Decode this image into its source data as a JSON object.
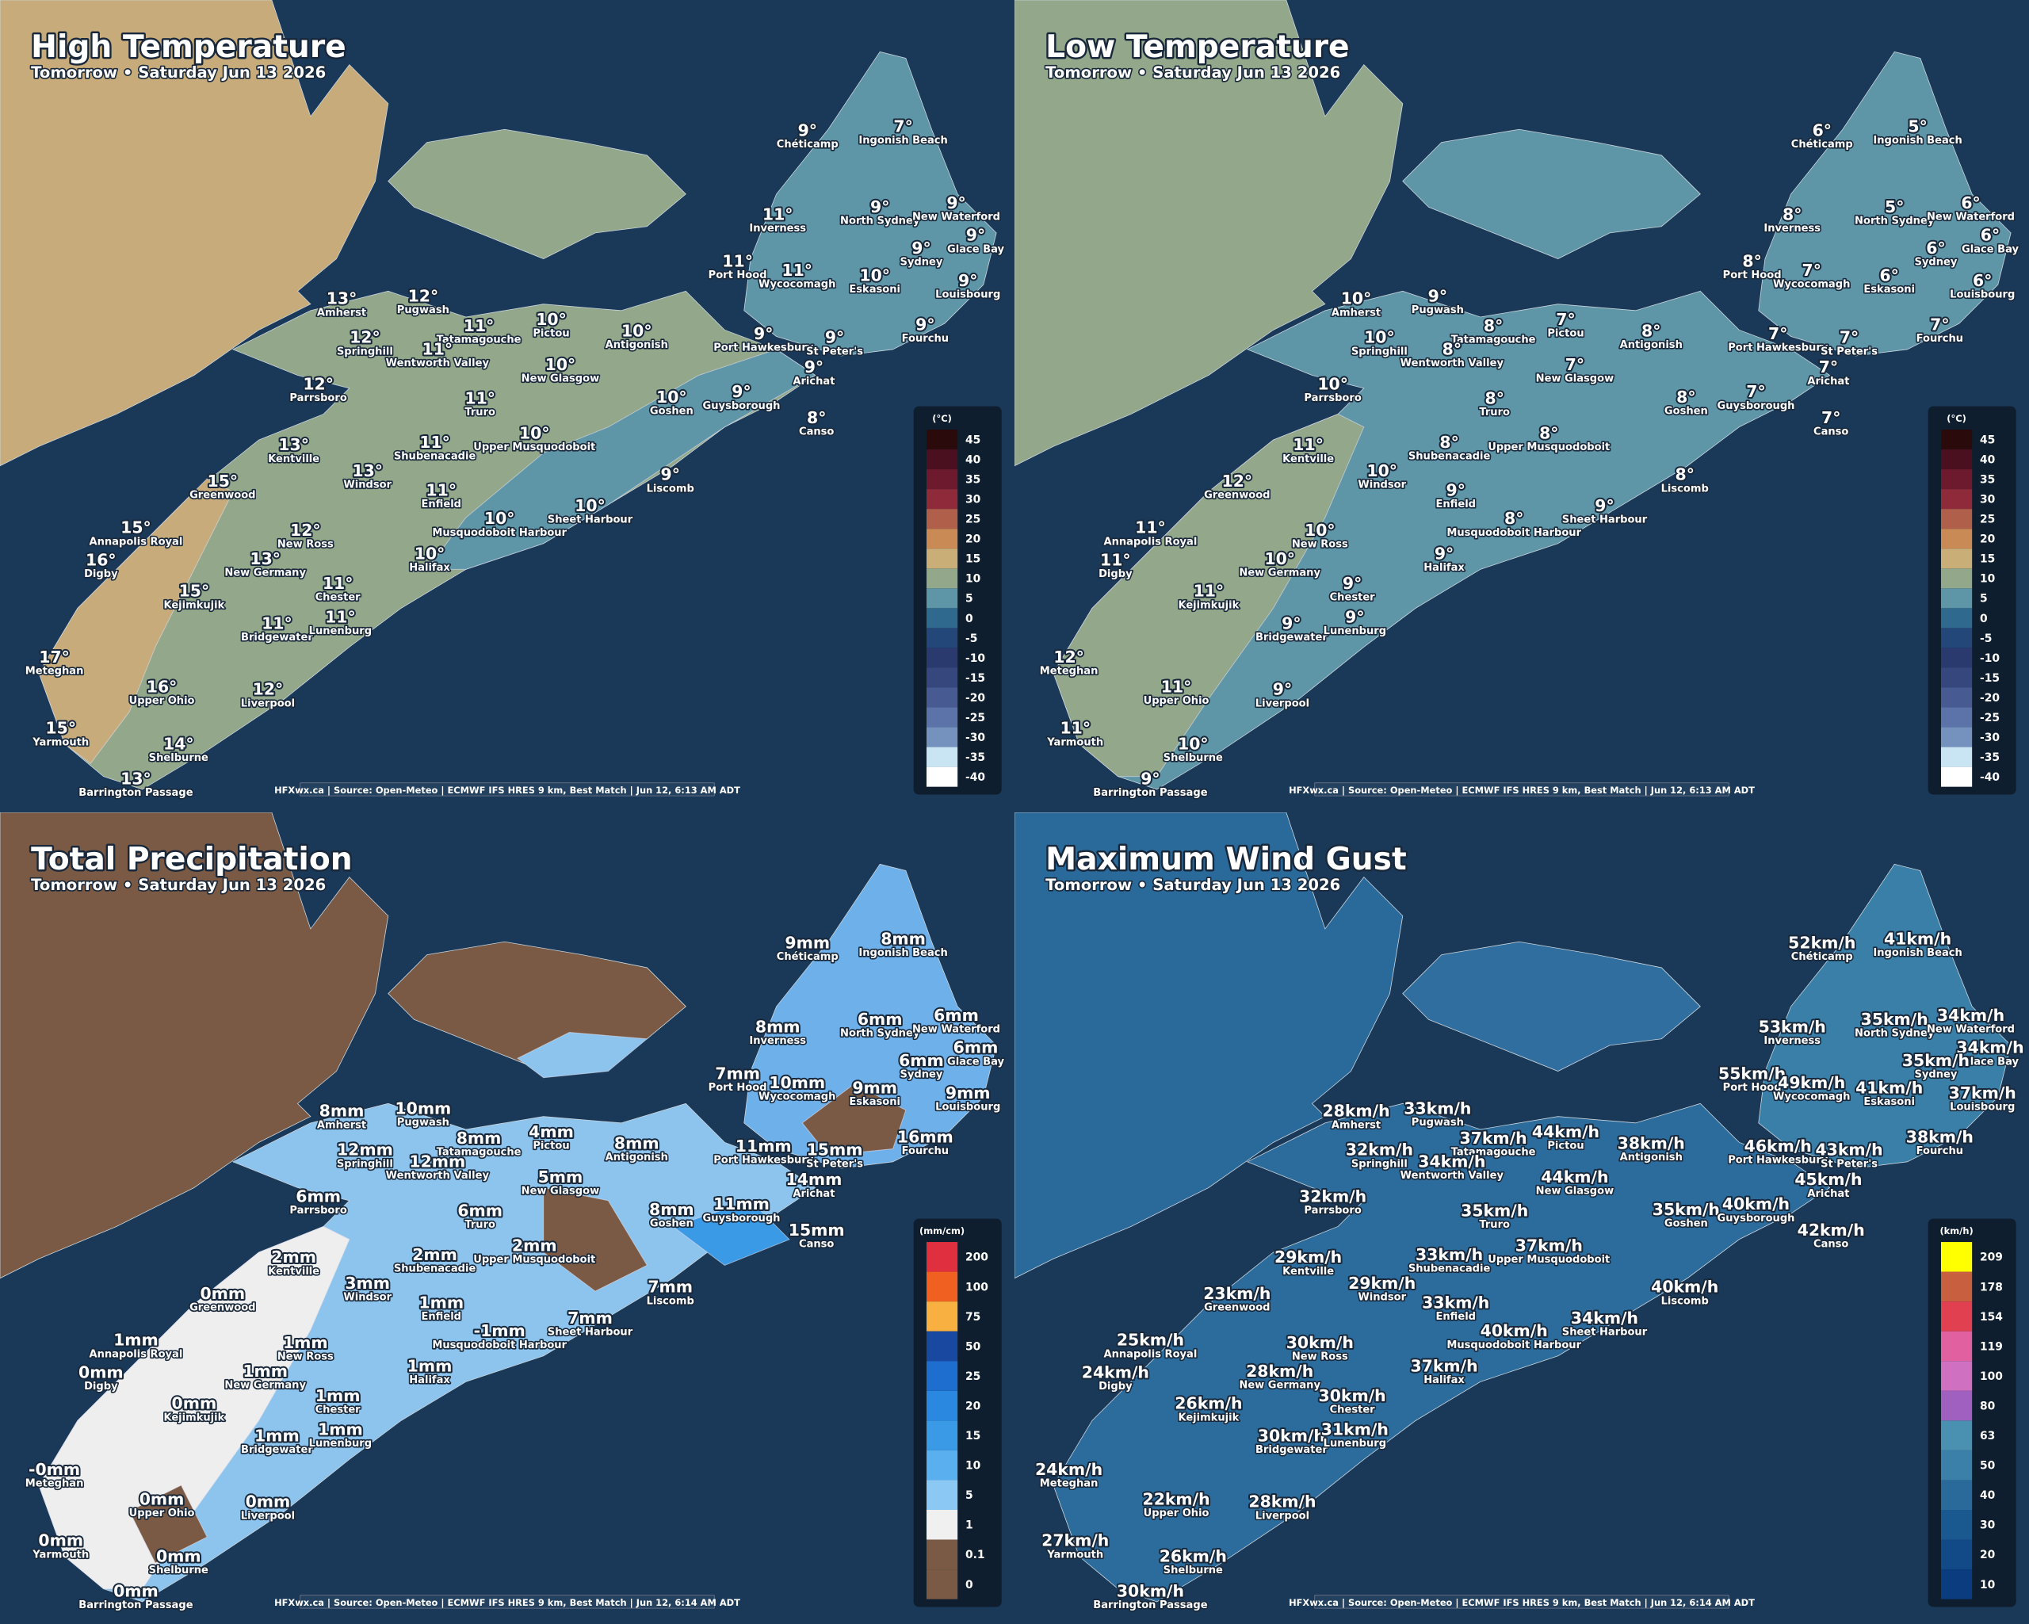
{
  "cities": [
    "Chéticamp",
    "Ingonish Beach",
    "Inverness",
    "North Sydney",
    "New Waterford",
    "Glace Bay",
    "Sydney",
    "Port Hood",
    "Wycocomagh",
    "Eskasoni",
    "Louisbourg",
    "Amherst",
    "Pugwash",
    "Tatamagouche",
    "Pictou",
    "Antigonish",
    "Port Hawkesbury",
    "St Peter's",
    "Springhill",
    "Wentworth Valley",
    "New Glasgow",
    "Arichat",
    "Fourchu",
    "Parrsboro",
    "Truro",
    "Goshen",
    "Guysborough",
    "Canso",
    "Kentville",
    "Shubenacadie",
    "Upper Musquodoboit",
    "Windsor",
    "Greenwood",
    "Enfield",
    "Liscomb",
    "Sheet Harbour",
    "Musquodoboit Harbour",
    "Annapolis Royal",
    "New Ross",
    "Digby",
    "New Germany",
    "Halifax",
    "Chester",
    "Kejimkujik",
    "Bridgewater",
    "Lunenburg",
    "Meteghan",
    "Upper Ohio",
    "Liverpool",
    "Yarmouth",
    "Shelburne",
    "Barrington Passage"
  ],
  "panels": [
    {
      "title": "High Temperature",
      "subtitle": "Tomorrow • Saturday Jun 13 2026",
      "source": "HFXwx.ca | Source: Open-Meteo | ECMWF IFS HRES 9 km, Best Match | Jun 12, 6:13 AM ADT",
      "legend": {
        "unit": "(°C)",
        "labels": [
          45,
          40,
          35,
          30,
          25,
          20,
          15,
          10,
          5,
          0,
          -5,
          -10,
          -15,
          -20,
          -25,
          -30,
          -35,
          -40
        ],
        "colors": [
          "#2a0a0a",
          "#4a1020",
          "#6e1a2e",
          "#8e2a3a",
          "#b0604a",
          "#c98a55",
          "#c9ae78",
          "#93a78a",
          "#5e96a8",
          "#2f6a8e",
          "#24477a",
          "#2a3a6e",
          "#36477e",
          "#485a92",
          "#5b73a8",
          "#7592bf",
          "#c9e4f2",
          "#ffffff"
        ]
      },
      "values": [
        "9°",
        "7°",
        "11°",
        "9°",
        "9°",
        "9°",
        "9°",
        "11°",
        "11°",
        "10°",
        "9°",
        "13°",
        "12°",
        "11°",
        "10°",
        "10°",
        "9°",
        "9°",
        "12°",
        "11°",
        "10°",
        "9°",
        "9°",
        "12°",
        "11°",
        "10°",
        "9°",
        "8°",
        "13°",
        "11°",
        "10°",
        "13°",
        "15°",
        "11°",
        "9°",
        "10°",
        "10°",
        "15°",
        "12°",
        "16°",
        "13°",
        "10°",
        "11°",
        "15°",
        "11°",
        "11°",
        "17°",
        "16°",
        "12°",
        "15°",
        "14°",
        "13°"
      ]
    },
    {
      "title": "Low Temperature",
      "subtitle": "Tomorrow • Saturday Jun 13 2026",
      "source": "HFXwx.ca | Source: Open-Meteo | ECMWF IFS HRES 9 km, Best Match | Jun 12, 6:13 AM ADT",
      "legend": {
        "unit": "(°C)",
        "labels": [
          45,
          40,
          35,
          30,
          25,
          20,
          15,
          10,
          5,
          0,
          -5,
          -10,
          -15,
          -20,
          -25,
          -30,
          -35,
          -40
        ],
        "colors": [
          "#2a0a0a",
          "#4a1020",
          "#6e1a2e",
          "#8e2a3a",
          "#b0604a",
          "#c98a55",
          "#c9ae78",
          "#93a78a",
          "#5e96a8",
          "#2f6a8e",
          "#24477a",
          "#2a3a6e",
          "#36477e",
          "#485a92",
          "#5b73a8",
          "#7592bf",
          "#c9e4f2",
          "#ffffff"
        ]
      },
      "values": [
        "6°",
        "5°",
        "8°",
        "5°",
        "6°",
        "6°",
        "6°",
        "8°",
        "7°",
        "6°",
        "6°",
        "10°",
        "9°",
        "8°",
        "7°",
        "8°",
        "7°",
        "7°",
        "10°",
        "8°",
        "7°",
        "7°",
        "7°",
        "10°",
        "8°",
        "8°",
        "7°",
        "7°",
        "11°",
        "8°",
        "8°",
        "10°",
        "12°",
        "9°",
        "8°",
        "9°",
        "8°",
        "11°",
        "10°",
        "11°",
        "10°",
        "9°",
        "9°",
        "11°",
        "9°",
        "9°",
        "12°",
        "11°",
        "9°",
        "11°",
        "10°",
        "9°"
      ]
    },
    {
      "title": "Total Precipitation",
      "subtitle": "Tomorrow • Saturday Jun 13 2026",
      "source": "HFXwx.ca | Source: Open-Meteo | ECMWF IFS HRES 9 km, Best Match | Jun 12, 6:14 AM ADT",
      "legend": {
        "unit": "(mm/cm)",
        "labels": [
          200,
          100,
          75,
          50,
          25,
          20,
          15,
          10,
          5,
          1,
          0.1,
          0
        ],
        "colors": [
          "#e03040",
          "#f06020",
          "#f8b040",
          "#1848a0",
          "#1e6ed0",
          "#2a88e0",
          "#3a9ae6",
          "#5ab0ee",
          "#8cc8f4",
          "#f0f0f0",
          "#7a5a44",
          "#7a5a44"
        ]
      },
      "values": [
        "9mm",
        "8mm",
        "8mm",
        "6mm",
        "6mm",
        "6mm",
        "6mm",
        "7mm",
        "10mm",
        "9mm",
        "9mm",
        "8mm",
        "10mm",
        "8mm",
        "4mm",
        "8mm",
        "11mm",
        "15mm",
        "12mm",
        "12mm",
        "5mm",
        "14mm",
        "16mm",
        "6mm",
        "6mm",
        "8mm",
        "11mm",
        "15mm",
        "2mm",
        "2mm",
        "2mm",
        "3mm",
        "0mm",
        "1mm",
        "7mm",
        "7mm",
        "-1mm",
        "1mm",
        "1mm",
        "0mm",
        "1mm",
        "1mm",
        "1mm",
        "0mm",
        "1mm",
        "1mm",
        "-0mm",
        "0mm",
        "0mm",
        "0mm",
        "0mm",
        "0mm"
      ]
    },
    {
      "title": "Maximum Wind Gust",
      "subtitle": "Tomorrow • Saturday Jun 13 2026",
      "source": "HFXwx.ca | Source: Open-Meteo | ECMWF IFS HRES 9 km, Best Match | Jun 12, 6:14 AM ADT",
      "legend": {
        "unit": "(km/h)",
        "labels": [
          209,
          178,
          154,
          119,
          100,
          80,
          63,
          50,
          40,
          30,
          20,
          10
        ],
        "colors": [
          "#ffff00",
          "#c86040",
          "#e04050",
          "#e060a0",
          "#d070c0",
          "#a060c0",
          "#4a90b0",
          "#3a80a8",
          "#2a6a9a",
          "#1a5890",
          "#124a88",
          "#0c3c80"
        ]
      },
      "values": [
        "52km/h",
        "41km/h",
        "53km/h",
        "35km/h",
        "34km/h",
        "34km/h",
        "35km/h",
        "55km/h",
        "49km/h",
        "41km/h",
        "37km/h",
        "28km/h",
        "33km/h",
        "37km/h",
        "44km/h",
        "38km/h",
        "46km/h",
        "43km/h",
        "32km/h",
        "34km/h",
        "44km/h",
        "45km/h",
        "38km/h",
        "32km/h",
        "35km/h",
        "35km/h",
        "40km/h",
        "42km/h",
        "29km/h",
        "33km/h",
        "37km/h",
        "29km/h",
        "23km/h",
        "33km/h",
        "40km/h",
        "34km/h",
        "40km/h",
        "25km/h",
        "30km/h",
        "24km/h",
        "28km/h",
        "37km/h",
        "30km/h",
        "26km/h",
        "30km/h",
        "31km/h",
        "24km/h",
        "22km/h",
        "28km/h",
        "27km/h",
        "26km/h",
        "30km/h"
      ]
    }
  ]
}
